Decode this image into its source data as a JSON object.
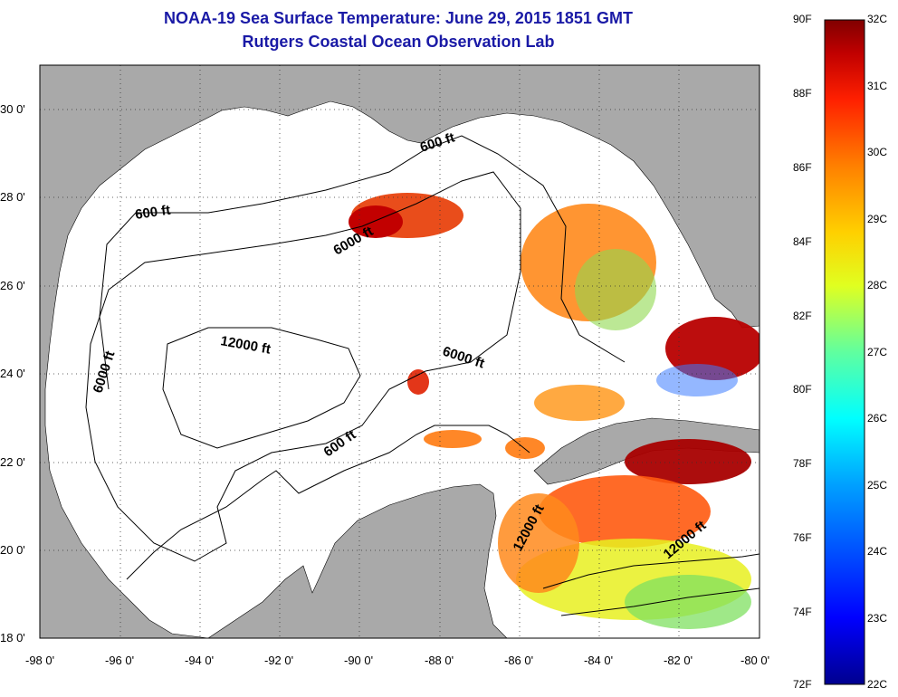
{
  "header": {
    "title": "NOAA-19 Sea Surface Temperature:  June 29, 2015 1851 GMT",
    "subtitle": "Rutgers Coastal Ocean Observation Lab"
  },
  "map": {
    "lon_range": [
      -98,
      -80
    ],
    "lat_range": [
      18,
      31
    ],
    "lon_ticks": [
      "-98 0'",
      "-96 0'",
      "-94 0'",
      "-92 0'",
      "-90 0'",
      "-88 0'",
      "-86 0'",
      "-84 0'",
      "-82 0'",
      "-80 0'"
    ],
    "lat_ticks": [
      "18 0'",
      "20 0'",
      "22 0'",
      "24 0'",
      "26 0'",
      "28 0'",
      "30 0'"
    ],
    "land_color": "#a9a9a9",
    "water_color": "#ffffff",
    "contour_labels": [
      "600 ft",
      "600 ft",
      "600 ft",
      "6000 ft",
      "6000 ft",
      "6000 ft",
      "12000 ft",
      "12000 ft",
      "12000 ft"
    ]
  },
  "colorbar": {
    "f_labels": [
      "90F",
      "88F",
      "86F",
      "84F",
      "82F",
      "80F",
      "78F",
      "76F",
      "74F",
      "72F"
    ],
    "c_labels": [
      "32C",
      "31C",
      "30C",
      "29C",
      "28C",
      "27C",
      "26C",
      "25C",
      "24C",
      "23C",
      "22C"
    ],
    "colors": [
      "#00008f",
      "#0000ff",
      "#00a0ff",
      "#00ffff",
      "#60ff9f",
      "#e0ff20",
      "#ffd000",
      "#ff8000",
      "#ff2000",
      "#c00000",
      "#800000"
    ]
  }
}
